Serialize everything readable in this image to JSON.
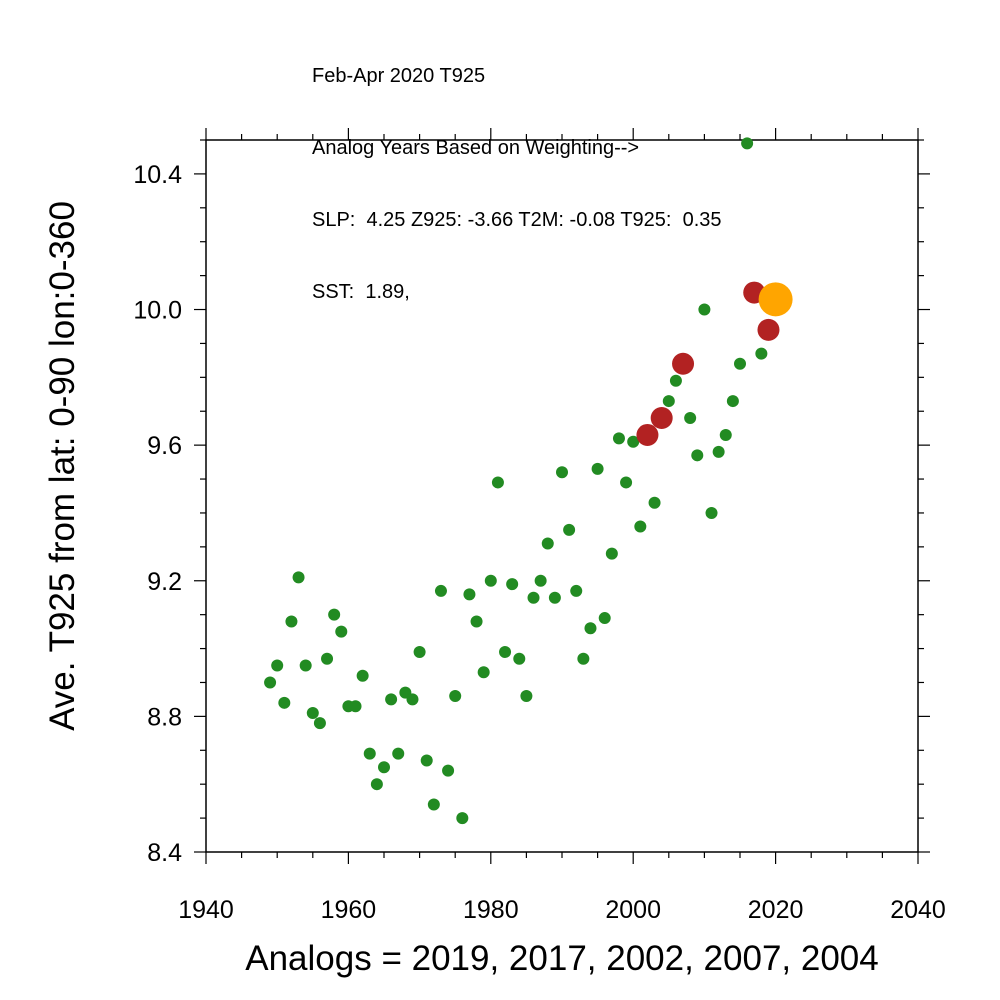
{
  "title_lines": [
    "Feb-Apr 2020 T925",
    "Analog Years Based on Weighting-->",
    "SLP:  4.25 Z925: -3.66 T2M: -0.08 T925:  0.35",
    "SST:  1.89,"
  ],
  "colors": {
    "background_point": "#228B22",
    "analog_point": "#B22222",
    "target_point": "#FFA500"
  },
  "chart_data": {
    "type": "scatter",
    "xlabel": "Analogs = 2019, 2017, 2002, 2007, 2004",
    "ylabel": "Ave. T925 from lat: 0-90 lon:0-360",
    "xlim": [
      1940,
      2040
    ],
    "ylim": [
      8.4,
      10.5
    ],
    "xticks": [
      "1940",
      "1960",
      "1980",
      "2000",
      "2020",
      "2040"
    ],
    "yticks": [
      "8.4",
      "8.8",
      "9.2",
      "9.6",
      "10.0",
      "10.4"
    ],
    "grid": false,
    "series": [
      {
        "role": "all years",
        "points": [
          [
            1949,
            8.9
          ],
          [
            1950,
            8.95
          ],
          [
            1951,
            8.84
          ],
          [
            1952,
            9.08
          ],
          [
            1953,
            9.21
          ],
          [
            1954,
            8.95
          ],
          [
            1955,
            8.81
          ],
          [
            1956,
            8.78
          ],
          [
            1957,
            8.97
          ],
          [
            1958,
            9.1
          ],
          [
            1959,
            9.05
          ],
          [
            1960,
            8.83
          ],
          [
            1961,
            8.83
          ],
          [
            1962,
            8.92
          ],
          [
            1963,
            8.69
          ],
          [
            1964,
            8.6
          ],
          [
            1965,
            8.65
          ],
          [
            1966,
            8.85
          ],
          [
            1967,
            8.69
          ],
          [
            1968,
            8.87
          ],
          [
            1969,
            8.85
          ],
          [
            1970,
            8.99
          ],
          [
            1971,
            8.67
          ],
          [
            1972,
            8.54
          ],
          [
            1973,
            9.17
          ],
          [
            1974,
            8.64
          ],
          [
            1975,
            8.86
          ],
          [
            1976,
            8.5
          ],
          [
            1977,
            9.16
          ],
          [
            1978,
            9.08
          ],
          [
            1979,
            8.93
          ],
          [
            1980,
            9.2
          ],
          [
            1981,
            9.49
          ],
          [
            1982,
            8.99
          ],
          [
            1983,
            9.19
          ],
          [
            1984,
            8.97
          ],
          [
            1985,
            8.86
          ],
          [
            1986,
            9.15
          ],
          [
            1987,
            9.2
          ],
          [
            1988,
            9.31
          ],
          [
            1989,
            9.15
          ],
          [
            1990,
            9.52
          ],
          [
            1991,
            9.35
          ],
          [
            1992,
            9.17
          ],
          [
            1993,
            8.97
          ],
          [
            1994,
            9.06
          ],
          [
            1995,
            9.53
          ],
          [
            1996,
            9.09
          ],
          [
            1997,
            9.28
          ],
          [
            1998,
            9.62
          ],
          [
            1999,
            9.49
          ],
          [
            2000,
            9.61
          ],
          [
            2001,
            9.36
          ],
          [
            2003,
            9.43
          ],
          [
            2005,
            9.73
          ],
          [
            2006,
            9.79
          ],
          [
            2008,
            9.68
          ],
          [
            2009,
            9.57
          ],
          [
            2010,
            10.0
          ],
          [
            2011,
            9.4
          ],
          [
            2012,
            9.58
          ],
          [
            2013,
            9.63
          ],
          [
            2014,
            9.73
          ],
          [
            2015,
            9.84
          ],
          [
            2016,
            10.49
          ],
          [
            2018,
            9.87
          ]
        ]
      },
      {
        "role": "analog years",
        "points": [
          [
            2002,
            9.63
          ],
          [
            2004,
            9.68
          ],
          [
            2007,
            9.84
          ],
          [
            2017,
            10.05
          ],
          [
            2019,
            9.94
          ]
        ]
      },
      {
        "role": "target year",
        "points": [
          [
            2020,
            10.03
          ]
        ]
      }
    ]
  }
}
